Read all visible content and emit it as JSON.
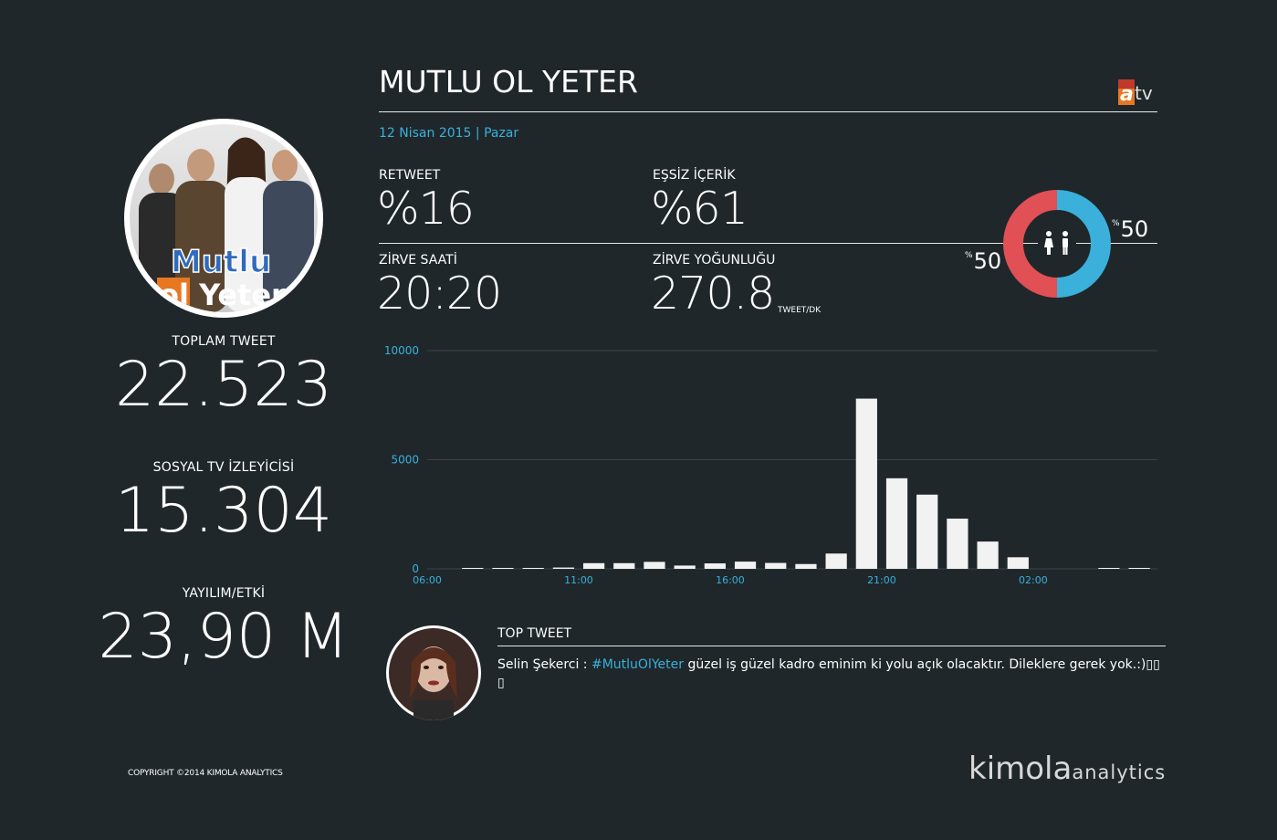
{
  "show": {
    "title": "MUTLU OL YETER",
    "date_line": "12 Nisan 2015 | Pazar",
    "channel_logo": {
      "letter": "a",
      "text": "tv"
    },
    "poster_text_1": "Mutlu",
    "poster_text_2": "ol Yeter"
  },
  "left_stats": {
    "total_tweet_label": "TOPLAM TWEET",
    "total_tweet_value": "22.523",
    "social_viewer_label": "SOSYAL TV İZLEYİCİSİ",
    "social_viewer_value": "15.304",
    "reach_label": "YAYILIM/ETKİ",
    "reach_value": "23,90 M"
  },
  "kpis": {
    "retweet_label": "RETWEET",
    "retweet_value": "%16",
    "unique_label": "EŞSİZ İÇERİK",
    "unique_value": "%61",
    "peak_time_label": "ZİRVE SAATİ",
    "peak_time_value": "20:20",
    "peak_density_label": "ZİRVE YOĞUNLUĞU",
    "peak_density_value": "270.8",
    "peak_density_unit": "TWEET/DK"
  },
  "gender": {
    "female_pct": 50,
    "male_pct": 50,
    "female_label": "50",
    "male_label": "50",
    "pct_symbol": "%",
    "female_color": "#e05055",
    "male_color": "#3ab0da"
  },
  "chart_data": {
    "type": "bar",
    "x_tick_labels": [
      "06:00",
      "11:00",
      "16:00",
      "21:00",
      "02:00"
    ],
    "y_tick_labels": [
      "10000",
      "5000",
      "0"
    ],
    "ylim": [
      0,
      10000
    ],
    "grid": true,
    "categories": [
      "06:00",
      "07:00",
      "08:00",
      "09:00",
      "10:00",
      "11:00",
      "12:00",
      "13:00",
      "14:00",
      "15:00",
      "16:00",
      "17:00",
      "18:00",
      "19:00",
      "20:00",
      "21:00",
      "22:00",
      "23:00",
      "00:00",
      "01:00",
      "02:00",
      "03:00",
      "04:00",
      "05:00"
    ],
    "values": [
      0,
      20,
      30,
      40,
      60,
      260,
      260,
      320,
      150,
      250,
      330,
      270,
      220,
      700,
      7800,
      4150,
      3400,
      2300,
      1250,
      530,
      0,
      0,
      20,
      40
    ]
  },
  "top_tweet": {
    "heading": "TOP TWEET",
    "author": "Selin Şekerci : ",
    "hashtag": "#MutluOlYeter",
    "text": " güzel iş güzel kadro eminim ki yolu açık olacaktır. Dileklere gerek yok.:)▯▯ ▯"
  },
  "footer": {
    "copyright": "COPYRIGHT ©2014 KIMOLA ANALYTICS",
    "brand_main": "kimola",
    "brand_sub": "analytics"
  },
  "colors": {
    "background": "#1f272b",
    "accent": "#3ab0da",
    "bar": "#f2f2f2"
  }
}
